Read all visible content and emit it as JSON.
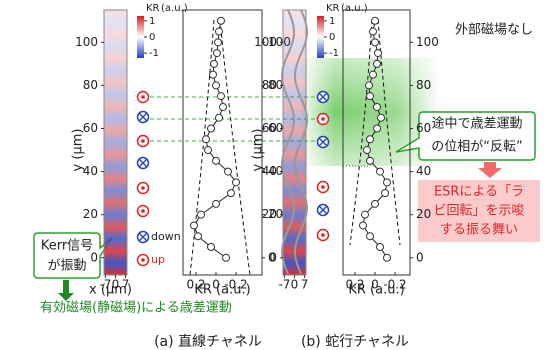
{
  "chart_data": [
    {
      "type": "scatter",
      "panel_label": "(a) 直線チャネル",
      "y_label": "y (μm)",
      "map_x_label": "x (μm)",
      "kr_label": "KR (a.u.)",
      "colorbar_label": [
        "KR",
        "(a.u.)"
      ],
      "colorbar_ticks": [
        1,
        0,
        -1
      ],
      "clim": [
        -1.3,
        1.3
      ],
      "map_xlim": [
        -8,
        8
      ],
      "map_xticks": [
        -7,
        0,
        7
      ],
      "ylim": [
        -8,
        115
      ],
      "yticks": [
        0,
        20,
        40,
        60,
        80,
        100
      ],
      "xlim": [
        0.33,
        -0.46
      ],
      "xticks": [
        0.2,
        0,
        -0.2
      ],
      "spin_labels": [
        "down",
        "up"
      ],
      "positions": [
        0,
        5,
        10,
        15,
        20,
        25,
        30,
        35,
        40,
        45,
        50,
        55,
        60,
        65,
        70,
        75,
        80,
        85,
        90,
        95,
        100,
        105,
        110
      ],
      "values": [
        -0.1,
        0.05,
        0.18,
        0.22,
        0.15,
        0,
        -0.15,
        -0.2,
        -0.12,
        0,
        0.08,
        0.1,
        0.05,
        -0.03,
        -0.07,
        -0.05,
        0,
        0.03,
        0.02,
        -0.01,
        -0.02,
        -0.03,
        -0.05
      ]
    },
    {
      "type": "scatter",
      "panel_label": "(b) 蛇行チャネル",
      "y_label": "y (μm)",
      "kr_label": "KR (a.u.)",
      "colorbar_label": [
        "KR",
        "(a.u.)"
      ],
      "colorbar_ticks": [
        1,
        0,
        -1
      ],
      "clim": [
        -1.3,
        1.3
      ],
      "map_xlim": [
        -8,
        8
      ],
      "map_xticks": [
        -7,
        0,
        7
      ],
      "ylim": [
        -8,
        115
      ],
      "yticks": [
        0,
        20,
        40,
        60,
        80,
        100
      ],
      "xlim": [
        0.32,
        -0.35
      ],
      "xticks": [
        0.2,
        0,
        -0.2
      ],
      "positions": [
        0,
        5,
        10,
        15,
        20,
        25,
        30,
        35,
        40,
        45,
        50,
        55,
        60,
        65,
        70,
        75,
        80,
        85,
        90,
        95,
        100,
        105,
        110
      ],
      "values": [
        -0.12,
        -0.05,
        0.05,
        0.12,
        0.1,
        0,
        -0.1,
        -0.12,
        -0.05,
        0.05,
        0.08,
        0.05,
        -0.02,
        -0.06,
        -0.02,
        0.05,
        0.06,
        0.02,
        -0.02,
        -0.03,
        0,
        0.02,
        0
      ]
    }
  ],
  "annotations": {
    "no_field": "外部磁場なし",
    "kerr_osc": [
      "Kerr信号",
      "が振動"
    ],
    "precession": "有効磁場(静磁場)による歳差運動",
    "phase_flip": [
      "途中で歳差運動",
      "の位相が“反転”"
    ],
    "esr": [
      "ESRによる「ラ",
      "ビ回転」を示唆",
      "する振る舞い"
    ]
  }
}
